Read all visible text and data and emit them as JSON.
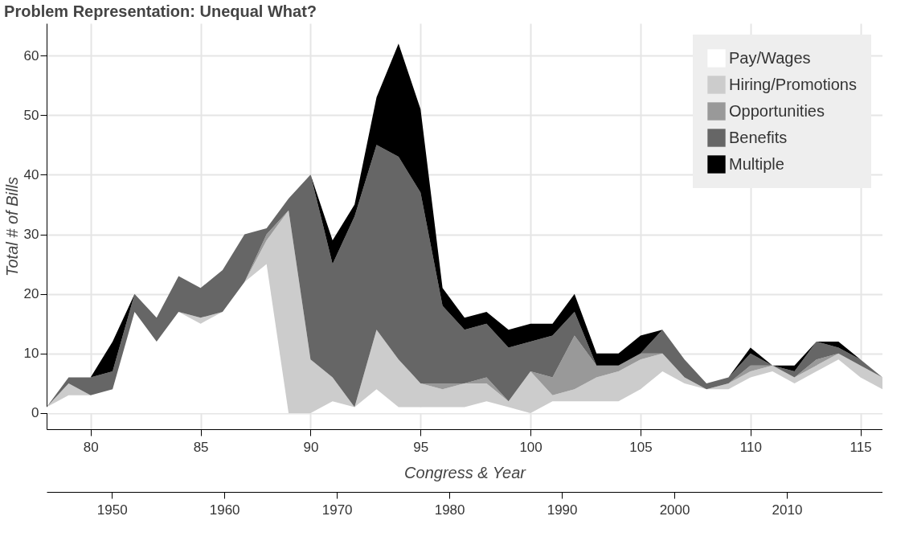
{
  "chart_data": {
    "type": "area",
    "stacked": true,
    "title": "Problem Representation: Unequal What?",
    "xlabel": "Congress & Year",
    "ylabel": "Total # of Bills",
    "x": [
      78,
      79,
      80,
      81,
      82,
      83,
      84,
      85,
      86,
      87,
      88,
      89,
      90,
      91,
      92,
      93,
      94,
      95,
      96,
      97,
      98,
      99,
      100,
      101,
      102,
      103,
      104,
      105,
      106,
      107,
      108,
      109,
      110,
      111,
      112,
      113,
      114,
      115,
      116
    ],
    "series": [
      {
        "name": "Pay/Wages",
        "color": "#ffffff",
        "values": [
          1,
          3,
          3,
          4,
          17,
          12,
          17,
          15,
          17,
          22,
          25,
          0,
          0,
          2,
          1,
          4,
          1,
          1,
          1,
          1,
          2,
          1,
          0,
          2,
          2,
          2,
          2,
          4,
          7,
          5,
          4,
          4,
          6,
          7,
          5,
          7,
          9,
          6,
          4
        ]
      },
      {
        "name": "Hiring/Promotions",
        "color": "#cccccc",
        "values": [
          0,
          2,
          0,
          0,
          0,
          0,
          0,
          1,
          0,
          0,
          4,
          34,
          9,
          4,
          0,
          10,
          8,
          4,
          3,
          4,
          3,
          1,
          7,
          1,
          2,
          4,
          5,
          5,
          3,
          1,
          0,
          1,
          1,
          1,
          1,
          1,
          1,
          2,
          2
        ]
      },
      {
        "name": "Opportunities",
        "color": "#999999",
        "values": [
          0,
          0,
          0,
          0,
          0,
          0,
          0,
          0,
          0,
          0,
          1,
          0,
          0,
          0,
          0,
          0,
          0,
          0,
          1,
          0,
          1,
          0,
          0,
          3,
          9,
          2,
          1,
          1,
          0,
          0,
          0,
          0,
          1,
          0,
          0,
          1,
          0,
          0,
          0
        ]
      },
      {
        "name": "Benefits",
        "color": "#666666",
        "values": [
          0,
          1,
          3,
          3,
          3,
          4,
          6,
          5,
          7,
          8,
          1,
          2,
          31,
          19,
          32,
          31,
          34,
          32,
          13,
          9,
          9,
          9,
          5,
          7,
          4,
          0,
          0,
          0,
          4,
          3,
          1,
          1,
          2,
          0,
          1,
          3,
          1,
          1,
          0
        ]
      },
      {
        "name": "Multiple",
        "color": "#000000",
        "values": [
          0,
          0,
          0,
          5,
          0,
          0,
          0,
          0,
          0,
          0,
          0,
          0,
          0,
          4,
          2,
          8,
          19,
          14,
          3,
          2,
          2,
          3,
          3,
          2,
          3,
          2,
          2,
          3,
          0,
          0,
          0,
          0,
          1,
          0,
          1,
          0,
          1,
          0,
          0
        ]
      }
    ],
    "xlim": [
      78,
      116
    ],
    "xticks": [
      80,
      85,
      90,
      95,
      100,
      105,
      110,
      115
    ],
    "ylim": [
      -2.7,
      65.4
    ],
    "yticks": [
      0,
      10,
      20,
      30,
      40,
      50,
      60
    ],
    "x2lim": [
      1944.2,
      2018.5
    ],
    "x2ticks": [
      1950,
      1960,
      1970,
      1980,
      1990,
      2000,
      2010
    ],
    "grid": true,
    "legend": "top right"
  }
}
